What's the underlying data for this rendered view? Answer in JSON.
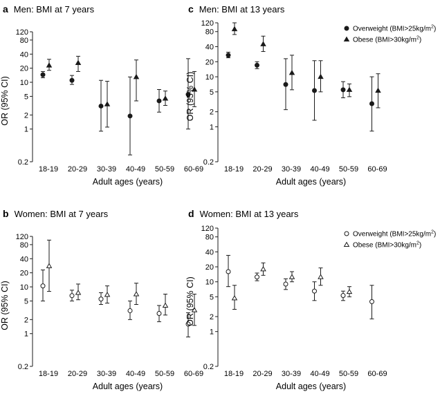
{
  "chart_data": [
    {
      "type": "scatter",
      "panel": "a",
      "title": "Men: BMI at 7 years",
      "xlabel": "Adult ages (years)",
      "ylabel": "OR (95% CI)",
      "yscale": "log",
      "ylim": [
        0.2,
        120
      ],
      "yticks": [
        "0.2",
        "1",
        "2",
        "5",
        "10",
        "20",
        "40",
        "80",
        "120"
      ],
      "categories": [
        "18-19",
        "20-29",
        "30-39",
        "40-49",
        "50-59",
        "60-69"
      ],
      "marker_fill": "filled",
      "legend": false,
      "series": [
        {
          "name": "Overweight (BMI>25kg/m2)",
          "marker": "circle",
          "values": [
            14.5,
            11.0,
            3.1,
            1.9,
            4.0,
            5.5
          ],
          "lower": [
            12.5,
            9.0,
            0.9,
            0.28,
            2.3,
            1.0
          ],
          "upper": [
            17.0,
            14.0,
            11.0,
            13.0,
            7.0,
            32.0
          ]
        },
        {
          "name": "Obese (BMI>30kg/m2)",
          "marker": "triangle",
          "values": [
            23.0,
            26.0,
            3.4,
            13.0,
            4.5,
            7.0
          ],
          "lower": [
            18.0,
            17.0,
            1.1,
            4.0,
            3.2,
            3.0
          ],
          "upper": [
            31.0,
            36.0,
            10.5,
            30.0,
            6.5,
            17.0
          ]
        }
      ]
    },
    {
      "type": "scatter",
      "panel": "c",
      "title": "Men: BMI at 13 years",
      "xlabel": "Adult ages (years)",
      "ylabel": "OR (95% CI)",
      "yscale": "log",
      "ylim": [
        0.2,
        120
      ],
      "yticks": [
        "0.2",
        "1",
        "2",
        "5",
        "10",
        "20",
        "40",
        "80",
        "120"
      ],
      "categories": [
        "18-19",
        "20-29",
        "30-39",
        "40-49",
        "50-59",
        "60-69"
      ],
      "marker_fill": "filled",
      "legend": true,
      "legend_position": "top-right",
      "legend_prefixes": [
        "Overweight (BMI>25kg/m",
        "Obese (BMI>30kg/m"
      ],
      "legend_superscript": "2",
      "legend_suffix": ")",
      "series": [
        {
          "name": "Overweight (BMI>25kg/m2)",
          "marker": "circle",
          "values": [
            27.0,
            17.0,
            7.0,
            5.3,
            5.5,
            2.9
          ],
          "lower": [
            24.0,
            14.5,
            2.2,
            1.35,
            3.8,
            0.82
          ],
          "upper": [
            31.0,
            20.0,
            23.0,
            21.0,
            8.0,
            10.0
          ]
        },
        {
          "name": "Obese (BMI>30kg/m2)",
          "marker": "triangle",
          "values": [
            90.0,
            45.0,
            12.0,
            10.0,
            5.5,
            5.3
          ],
          "lower": [
            70.0,
            32.0,
            5.5,
            5.0,
            4.0,
            2.4
          ],
          "upper": [
            120.0,
            65.0,
            27.0,
            21.0,
            7.2,
            11.5
          ]
        }
      ]
    },
    {
      "type": "scatter",
      "panel": "b",
      "title": "Women: BMI at 7 years",
      "xlabel": "Adult ages (years)",
      "ylabel": "OR (95% CI)",
      "yscale": "log",
      "ylim": [
        0.2,
        120
      ],
      "yticks": [
        "0.2",
        "1",
        "2",
        "5",
        "10",
        "20",
        "40",
        "80",
        "120"
      ],
      "categories": [
        "18-19",
        "20-29",
        "30-39",
        "40-49",
        "50-59",
        "60-69"
      ],
      "marker_fill": "open",
      "legend": false,
      "series": [
        {
          "name": "Overweight (BMI>25kg/m2)",
          "marker": "circle",
          "values": [
            10.5,
            6.5,
            5.5,
            3.1,
            2.7,
            1.6
          ],
          "lower": [
            5.0,
            5.0,
            4.2,
            2.0,
            1.8,
            0.85
          ],
          "upper": [
            23.0,
            8.5,
            7.5,
            5.0,
            4.0,
            2.8
          ]
        },
        {
          "name": "Obese (BMI>30kg/m2)",
          "marker": "triangle",
          "values": [
            28.0,
            7.5,
            6.8,
            7.0,
            4.0,
            3.2
          ],
          "lower": [
            8.0,
            5.3,
            4.5,
            4.2,
            2.5,
            1.5
          ],
          "upper": [
            100.0,
            11.5,
            10.5,
            12.0,
            7.0,
            7.0
          ]
        }
      ]
    },
    {
      "type": "scatter",
      "panel": "d",
      "title": "Women: BMI at 13 years",
      "xlabel": "Adult ages (years)",
      "ylabel": "OR (95% CI)",
      "yscale": "log",
      "ylim": [
        0.2,
        120
      ],
      "yticks": [
        "0.2",
        "1",
        "2",
        "5",
        "10",
        "20",
        "40",
        "80",
        "120"
      ],
      "categories": [
        "18-19",
        "20-29",
        "30-39",
        "40-49",
        "50-59",
        "60-69"
      ],
      "marker_fill": "open",
      "legend": true,
      "legend_position": "top-right",
      "legend_prefixes": [
        "Overweight (BMI>25kg/m",
        "Obese (BMI>30kg/m"
      ],
      "legend_superscript": "2",
      "legend_suffix": ")",
      "series": [
        {
          "name": "Overweight (BMI>25kg/m2)",
          "marker": "circle",
          "values": [
            16.0,
            12.5,
            9.0,
            6.5,
            5.3,
            4.0
          ],
          "lower": [
            8.0,
            10.5,
            7.0,
            4.2,
            4.2,
            1.8
          ],
          "upper": [
            34.0,
            15.0,
            11.5,
            10.0,
            6.5,
            8.5
          ]
        },
        {
          "name": "Obese (BMI>30kg/m2)",
          "marker": "triangle",
          "values": [
            4.7,
            18.0,
            12.5,
            12.5,
            6.3,
            null
          ],
          "lower": [
            2.8,
            13.5,
            10.0,
            8.5,
            5.0,
            null
          ],
          "upper": [
            8.5,
            24.0,
            16.0,
            19.0,
            8.0,
            null
          ]
        }
      ]
    }
  ]
}
